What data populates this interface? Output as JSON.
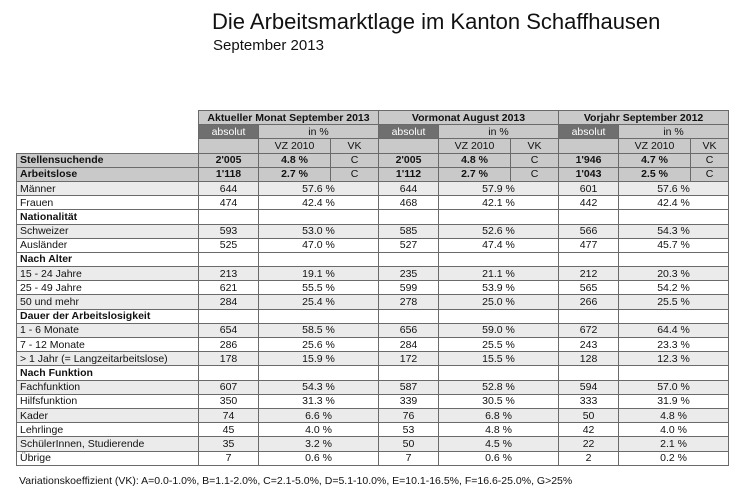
{
  "title": "Die Arbeitsmarktlage im Kanton Schaffhausen",
  "subtitle": "September 2013",
  "headers": {
    "groups": [
      "Aktueller Monat September 2013",
      "Vormonat August 2013",
      "Vorjahr September 2012"
    ],
    "absolut": "absolut",
    "in_pct": "in %",
    "vz": "VZ 2010",
    "vk": "VK"
  },
  "rows": [
    {
      "label": "Stellensuchende",
      "a1": "2'005",
      "p1": "4.8 %",
      "k1": "C",
      "a2": "2'005",
      "p2": "4.8 %",
      "k2": "C",
      "a3": "1'946",
      "p3": "4.7 %",
      "k3": "C"
    },
    {
      "label": "Arbeitslose",
      "a1": "1'118",
      "p1": "2.7 %",
      "k1": "C",
      "a2": "1'112",
      "p2": "2.7 %",
      "k2": "C",
      "a3": "1'043",
      "p3": "2.5 %",
      "k3": "C"
    },
    {
      "label": "Männer",
      "a1": "644",
      "p1": "57.6 %",
      "a2": "644",
      "p2": "57.9 %",
      "a3": "601",
      "p3": "57.6 %"
    },
    {
      "label": "Frauen",
      "a1": "474",
      "p1": "42.4 %",
      "a2": "468",
      "p2": "42.1 %",
      "a3": "442",
      "p3": "42.4 %"
    },
    {
      "label": "Nationalität"
    },
    {
      "label": "Schweizer",
      "a1": "593",
      "p1": "53.0 %",
      "a2": "585",
      "p2": "52.6 %",
      "a3": "566",
      "p3": "54.3 %"
    },
    {
      "label": "Ausländer",
      "a1": "525",
      "p1": "47.0 %",
      "a2": "527",
      "p2": "47.4 %",
      "a3": "477",
      "p3": "45.7 %"
    },
    {
      "label": "Nach Alter"
    },
    {
      "label": "15 - 24 Jahre",
      "a1": "213",
      "p1": "19.1 %",
      "a2": "235",
      "p2": "21.1 %",
      "a3": "212",
      "p3": "20.3 %"
    },
    {
      "label": "25 - 49 Jahre",
      "a1": "621",
      "p1": "55.5 %",
      "a2": "599",
      "p2": "53.9 %",
      "a3": "565",
      "p3": "54.2 %"
    },
    {
      "label": "50 und mehr",
      "a1": "284",
      "p1": "25.4 %",
      "a2": "278",
      "p2": "25.0 %",
      "a3": "266",
      "p3": "25.5 %"
    },
    {
      "label": "Dauer der Arbeitslosigkeit"
    },
    {
      "label": "1 - 6 Monate",
      "a1": "654",
      "p1": "58.5 %",
      "a2": "656",
      "p2": "59.0 %",
      "a3": "672",
      "p3": "64.4 %"
    },
    {
      "label": "7 - 12 Monate",
      "a1": "286",
      "p1": "25.6 %",
      "a2": "284",
      "p2": "25.5 %",
      "a3": "243",
      "p3": "23.3 %"
    },
    {
      "label": "> 1 Jahr (= Langzeitarbeitslose)",
      "a1": "178",
      "p1": "15.9 %",
      "a2": "172",
      "p2": "15.5 %",
      "a3": "128",
      "p3": "12.3 %"
    },
    {
      "label": "Nach Funktion"
    },
    {
      "label": "Fachfunktion",
      "a1": "607",
      "p1": "54.3 %",
      "a2": "587",
      "p2": "52.8 %",
      "a3": "594",
      "p3": "57.0 %"
    },
    {
      "label": "Hilfsfunktion",
      "a1": "350",
      "p1": "31.3 %",
      "a2": "339",
      "p2": "30.5 %",
      "a3": "333",
      "p3": "31.9 %"
    },
    {
      "label": "Kader",
      "a1": "74",
      "p1": "6.6 %",
      "a2": "76",
      "p2": "6.8 %",
      "a3": "50",
      "p3": "4.8 %"
    },
    {
      "label": "Lehrlinge",
      "a1": "45",
      "p1": "4.0 %",
      "a2": "53",
      "p2": "4.8 %",
      "a3": "42",
      "p3": "4.0 %"
    },
    {
      "label": "SchülerInnen, Studierende",
      "a1": "35",
      "p1": "3.2 %",
      "a2": "50",
      "p2": "4.5 %",
      "a3": "22",
      "p3": "2.1 %"
    },
    {
      "label": "Übrige",
      "a1": "7",
      "p1": "0.6 %",
      "a2": "7",
      "p2": "0.6 %",
      "a3": "2",
      "p3": "0.2 %"
    }
  ],
  "footnote": "Variationskoeffizient (VK): A=0.0-1.0%, B=1.1-2.0%, C=2.1-5.0%, D=5.1-10.0%, E=10.1-16.5%, F=16.6-25.0%, G>25%"
}
